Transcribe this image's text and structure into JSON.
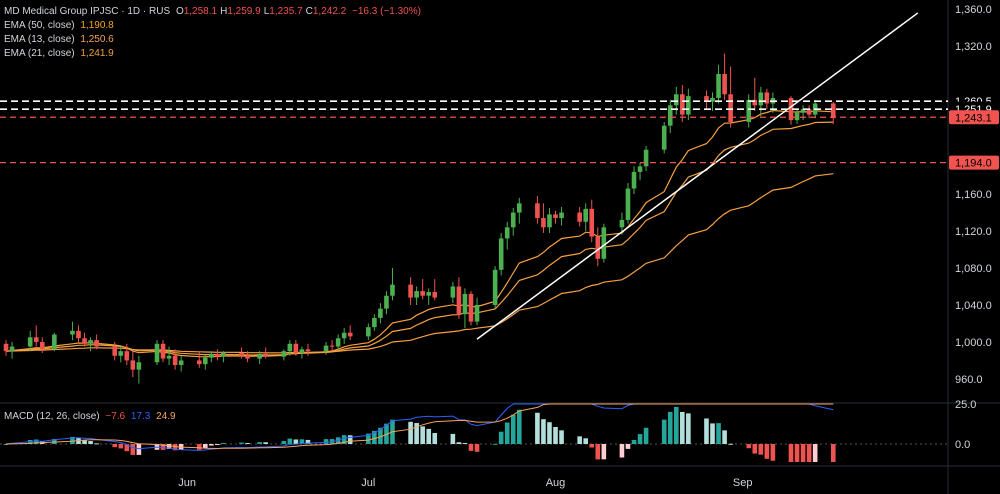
{
  "header": {
    "symbol": "MD Medical Group IPJSC · 1D · RUS",
    "ohlc": [
      {
        "k": "O",
        "v": "1,258.1"
      },
      {
        "k": "H",
        "v": "1,259.9"
      },
      {
        "k": "L",
        "v": "1,235.7"
      },
      {
        "k": "C",
        "v": "1,242.2"
      }
    ],
    "change": "−16.3 (−1.30%)"
  },
  "indicators": [
    {
      "label": "EMA (50, close)",
      "value": "1,190.8",
      "color": "#f5a623"
    },
    {
      "label": "EMA (13, close)",
      "value": "1,250.6",
      "color": "#f7a35c"
    },
    {
      "label": "EMA (21, close)",
      "value": "1,241.9",
      "color": "#f0a040"
    }
  ],
  "macd": {
    "label": "MACD (12, 26, close)",
    "values": [
      {
        "v": "−7.6",
        "color": "#f05350"
      },
      {
        "v": "17.3",
        "color": "#2962ff"
      },
      {
        "v": "24.9",
        "color": "#f7a35c"
      }
    ],
    "ticks": [
      "25.0",
      "0.0"
    ]
  },
  "colors": {
    "up": "#26a69a",
    "up_bright": "#4caf50",
    "down": "#ef5350",
    "ema": "#f5a040",
    "macd_line": "#2962ff",
    "signal_line": "#f7a35c",
    "hist_up": "#26a69a",
    "hist_down": "#ef5350"
  },
  "chart_data": {
    "type": "candlestick",
    "y_axis": {
      "range": [
        935,
        1370
      ],
      "ticks": [
        "960.0",
        "1,000.0",
        "1,040.0",
        "1,080.0",
        "1,120.0",
        "1,160.0",
        "1,320.0",
        "1,360.0"
      ]
    },
    "x_axis": {
      "labels": [
        "Jun",
        "Jul",
        "Aug",
        "Sep"
      ]
    },
    "horizontal_levels": [
      {
        "value": 1260.5,
        "label": "1,260.5",
        "style": "white-dashed"
      },
      {
        "value": 1251.9,
        "label": "1,251.9",
        "style": "white-dashed"
      },
      {
        "value": 1243.1,
        "label": "1,243.1",
        "style": "red-dashed"
      },
      {
        "value": 1194.0,
        "label": "1,194.0",
        "style": "red-dashed"
      }
    ],
    "trendline": {
      "from": {
        "date": "2024-07-19",
        "price": 1003
      },
      "to": {
        "date": "2024-09-30",
        "price": 1356
      }
    },
    "candles": [
      {
        "date": "2024-05-02",
        "o": 998,
        "h": 1002,
        "l": 985,
        "c": 990
      },
      {
        "date": "2024-05-03",
        "o": 990,
        "h": 1000,
        "l": 982,
        "c": 995
      },
      {
        "date": "2024-05-06",
        "o": 995,
        "h": 1012,
        "l": 990,
        "c": 1005
      },
      {
        "date": "2024-05-07",
        "o": 1005,
        "h": 1018,
        "l": 995,
        "c": 1000
      },
      {
        "date": "2024-05-08",
        "o": 1000,
        "h": 1005,
        "l": 988,
        "c": 992
      },
      {
        "date": "2024-05-10",
        "o": 992,
        "h": 1010,
        "l": 990,
        "c": 1008
      },
      {
        "date": "2024-05-13",
        "o": 1008,
        "h": 1022,
        "l": 1002,
        "c": 1012
      },
      {
        "date": "2024-05-14",
        "o": 1012,
        "h": 1018,
        "l": 1000,
        "c": 1004
      },
      {
        "date": "2024-05-15",
        "o": 1004,
        "h": 1010,
        "l": 995,
        "c": 998
      },
      {
        "date": "2024-05-16",
        "o": 998,
        "h": 1005,
        "l": 990,
        "c": 1002
      },
      {
        "date": "2024-05-17",
        "o": 1002,
        "h": 1008,
        "l": 992,
        "c": 995
      },
      {
        "date": "2024-05-20",
        "o": 995,
        "h": 1000,
        "l": 980,
        "c": 985
      },
      {
        "date": "2024-05-21",
        "o": 985,
        "h": 995,
        "l": 978,
        "c": 990
      },
      {
        "date": "2024-05-22",
        "o": 990,
        "h": 998,
        "l": 975,
        "c": 980
      },
      {
        "date": "2024-05-23",
        "o": 980,
        "h": 990,
        "l": 962,
        "c": 970
      },
      {
        "date": "2024-05-24",
        "o": 970,
        "h": 985,
        "l": 955,
        "c": 978
      },
      {
        "date": "2024-05-27",
        "o": 978,
        "h": 1002,
        "l": 975,
        "c": 998
      },
      {
        "date": "2024-05-28",
        "o": 998,
        "h": 1002,
        "l": 978,
        "c": 982
      },
      {
        "date": "2024-05-29",
        "o": 982,
        "h": 995,
        "l": 975,
        "c": 985
      },
      {
        "date": "2024-05-30",
        "o": 985,
        "h": 992,
        "l": 970,
        "c": 975
      },
      {
        "date": "2024-05-31",
        "o": 975,
        "h": 985,
        "l": 968,
        "c": 980
      },
      {
        "date": "2024-06-03",
        "o": 980,
        "h": 990,
        "l": 972,
        "c": 976
      },
      {
        "date": "2024-06-04",
        "o": 976,
        "h": 986,
        "l": 970,
        "c": 983
      },
      {
        "date": "2024-06-05",
        "o": 983,
        "h": 990,
        "l": 978,
        "c": 987
      },
      {
        "date": "2024-06-06",
        "o": 987,
        "h": 992,
        "l": 980,
        "c": 984
      },
      {
        "date": "2024-06-07",
        "o": 984,
        "h": 990,
        "l": 978,
        "c": 988
      },
      {
        "date": "2024-06-10",
        "o": 988,
        "h": 994,
        "l": 982,
        "c": 985
      },
      {
        "date": "2024-06-11",
        "o": 985,
        "h": 990,
        "l": 978,
        "c": 982
      },
      {
        "date": "2024-06-13",
        "o": 982,
        "h": 990,
        "l": 976,
        "c": 987
      },
      {
        "date": "2024-06-14",
        "o": 987,
        "h": 994,
        "l": 982,
        "c": 984
      },
      {
        "date": "2024-06-17",
        "o": 984,
        "h": 992,
        "l": 980,
        "c": 990
      },
      {
        "date": "2024-06-18",
        "o": 990,
        "h": 1002,
        "l": 985,
        "c": 998
      },
      {
        "date": "2024-06-19",
        "o": 998,
        "h": 1002,
        "l": 985,
        "c": 988
      },
      {
        "date": "2024-06-20",
        "o": 988,
        "h": 995,
        "l": 982,
        "c": 992
      },
      {
        "date": "2024-06-21",
        "o": 992,
        "h": 998,
        "l": 985,
        "c": 990
      },
      {
        "date": "2024-06-24",
        "o": 990,
        "h": 1000,
        "l": 986,
        "c": 996
      },
      {
        "date": "2024-06-25",
        "o": 996,
        "h": 1002,
        "l": 990,
        "c": 995
      },
      {
        "date": "2024-06-26",
        "o": 995,
        "h": 1008,
        "l": 992,
        "c": 1004
      },
      {
        "date": "2024-06-27",
        "o": 1004,
        "h": 1015,
        "l": 998,
        "c": 1010
      },
      {
        "date": "2024-06-28",
        "o": 1010,
        "h": 1018,
        "l": 1002,
        "c": 1006
      },
      {
        "date": "2024-07-01",
        "o": 1006,
        "h": 1020,
        "l": 1002,
        "c": 1016
      },
      {
        "date": "2024-07-02",
        "o": 1016,
        "h": 1030,
        "l": 1012,
        "c": 1026
      },
      {
        "date": "2024-07-03",
        "o": 1026,
        "h": 1042,
        "l": 1020,
        "c": 1036
      },
      {
        "date": "2024-07-04",
        "o": 1036,
        "h": 1055,
        "l": 1030,
        "c": 1050
      },
      {
        "date": "2024-07-05",
        "o": 1050,
        "h": 1080,
        "l": 1045,
        "c": 1062
      },
      {
        "date": "2024-07-08",
        "o": 1062,
        "h": 1070,
        "l": 1040,
        "c": 1048
      },
      {
        "date": "2024-07-09",
        "o": 1048,
        "h": 1060,
        "l": 1040,
        "c": 1055
      },
      {
        "date": "2024-07-10",
        "o": 1055,
        "h": 1068,
        "l": 1046,
        "c": 1050
      },
      {
        "date": "2024-07-11",
        "o": 1050,
        "h": 1058,
        "l": 1040,
        "c": 1054
      },
      {
        "date": "2024-07-12",
        "o": 1054,
        "h": 1068,
        "l": 1045,
        "c": 1048
      },
      {
        "date": "2024-07-15",
        "o": 1048,
        "h": 1065,
        "l": 1042,
        "c": 1060
      },
      {
        "date": "2024-07-16",
        "o": 1060,
        "h": 1070,
        "l": 1025,
        "c": 1030
      },
      {
        "date": "2024-07-17",
        "o": 1030,
        "h": 1058,
        "l": 1015,
        "c": 1052
      },
      {
        "date": "2024-07-18",
        "o": 1052,
        "h": 1055,
        "l": 1018,
        "c": 1022
      },
      {
        "date": "2024-07-19",
        "o": 1022,
        "h": 1048,
        "l": 1018,
        "c": 1040
      },
      {
        "date": "2024-07-22",
        "o": 1040,
        "h": 1082,
        "l": 1036,
        "c": 1078
      },
      {
        "date": "2024-07-23",
        "o": 1078,
        "h": 1118,
        "l": 1072,
        "c": 1112
      },
      {
        "date": "2024-07-24",
        "o": 1112,
        "h": 1130,
        "l": 1100,
        "c": 1124
      },
      {
        "date": "2024-07-25",
        "o": 1124,
        "h": 1145,
        "l": 1115,
        "c": 1140
      },
      {
        "date": "2024-07-26",
        "o": 1140,
        "h": 1156,
        "l": 1128,
        "c": 1150
      },
      {
        "date": "2024-07-29",
        "o": 1150,
        "h": 1158,
        "l": 1128,
        "c": 1134
      },
      {
        "date": "2024-07-30",
        "o": 1134,
        "h": 1150,
        "l": 1118,
        "c": 1124
      },
      {
        "date": "2024-07-31",
        "o": 1124,
        "h": 1145,
        "l": 1118,
        "c": 1138
      },
      {
        "date": "2024-08-01",
        "o": 1138,
        "h": 1142,
        "l": 1128,
        "c": 1134
      },
      {
        "date": "2024-08-02",
        "o": 1134,
        "h": 1146,
        "l": 1126,
        "c": 1140
      },
      {
        "date": "2024-08-05",
        "o": 1140,
        "h": 1146,
        "l": 1125,
        "c": 1130
      },
      {
        "date": "2024-08-06",
        "o": 1130,
        "h": 1150,
        "l": 1120,
        "c": 1144
      },
      {
        "date": "2024-08-07",
        "o": 1144,
        "h": 1154,
        "l": 1108,
        "c": 1114
      },
      {
        "date": "2024-08-08",
        "o": 1114,
        "h": 1124,
        "l": 1082,
        "c": 1090
      },
      {
        "date": "2024-08-09",
        "o": 1090,
        "h": 1128,
        "l": 1086,
        "c": 1124
      },
      {
        "date": "2024-08-12",
        "o": 1124,
        "h": 1140,
        "l": 1116,
        "c": 1132
      },
      {
        "date": "2024-08-13",
        "o": 1132,
        "h": 1172,
        "l": 1128,
        "c": 1166
      },
      {
        "date": "2024-08-14",
        "o": 1166,
        "h": 1190,
        "l": 1160,
        "c": 1184
      },
      {
        "date": "2024-08-15",
        "o": 1184,
        "h": 1194,
        "l": 1175,
        "c": 1190
      },
      {
        "date": "2024-08-16",
        "o": 1190,
        "h": 1212,
        "l": 1185,
        "c": 1208
      },
      {
        "date": "2024-08-19",
        "o": 1208,
        "h": 1238,
        "l": 1204,
        "c": 1234
      },
      {
        "date": "2024-08-20",
        "o": 1234,
        "h": 1262,
        "l": 1226,
        "c": 1256
      },
      {
        "date": "2024-08-21",
        "o": 1256,
        "h": 1276,
        "l": 1246,
        "c": 1268
      },
      {
        "date": "2024-08-22",
        "o": 1268,
        "h": 1278,
        "l": 1238,
        "c": 1246
      },
      {
        "date": "2024-08-23",
        "o": 1246,
        "h": 1274,
        "l": 1240,
        "c": 1266
      },
      {
        "date": "2024-08-26",
        "o": 1266,
        "h": 1272,
        "l": 1252,
        "c": 1260
      },
      {
        "date": "2024-08-27",
        "o": 1260,
        "h": 1270,
        "l": 1250,
        "c": 1264
      },
      {
        "date": "2024-08-28",
        "o": 1264,
        "h": 1300,
        "l": 1258,
        "c": 1290
      },
      {
        "date": "2024-08-29",
        "o": 1290,
        "h": 1312,
        "l": 1262,
        "c": 1268
      },
      {
        "date": "2024-08-30",
        "o": 1268,
        "h": 1298,
        "l": 1232,
        "c": 1238
      },
      {
        "date": "2024-09-02",
        "o": 1238,
        "h": 1268,
        "l": 1232,
        "c": 1262
      },
      {
        "date": "2024-09-03",
        "o": 1262,
        "h": 1286,
        "l": 1250,
        "c": 1256
      },
      {
        "date": "2024-09-04",
        "o": 1256,
        "h": 1276,
        "l": 1244,
        "c": 1270
      },
      {
        "date": "2024-09-05",
        "o": 1270,
        "h": 1274,
        "l": 1252,
        "c": 1258
      },
      {
        "date": "2024-09-06",
        "o": 1258,
        "h": 1270,
        "l": 1248,
        "c": 1264
      },
      {
        "date": "2024-09-09",
        "o": 1264,
        "h": 1266,
        "l": 1235,
        "c": 1240
      },
      {
        "date": "2024-09-10",
        "o": 1240,
        "h": 1252,
        "l": 1236,
        "c": 1248
      },
      {
        "date": "2024-09-11",
        "o": 1248,
        "h": 1256,
        "l": 1240,
        "c": 1252
      },
      {
        "date": "2024-09-12",
        "o": 1252,
        "h": 1256,
        "l": 1242,
        "c": 1246
      },
      {
        "date": "2024-09-13",
        "o": 1246,
        "h": 1262,
        "l": 1242,
        "c": 1258
      },
      {
        "date": "2024-09-16",
        "o": 1258.1,
        "h": 1259.9,
        "l": 1235.7,
        "c": 1242.2
      }
    ]
  }
}
